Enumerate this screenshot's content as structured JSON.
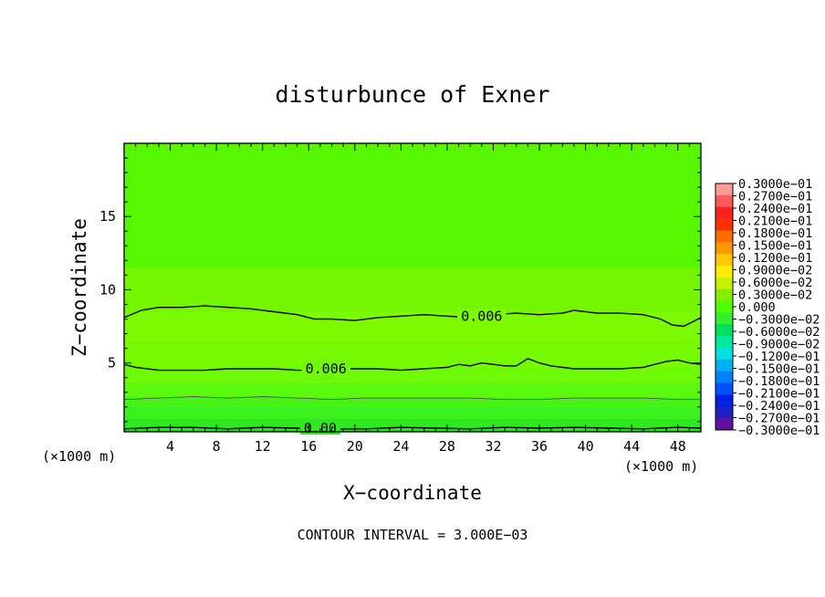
{
  "chart_data": {
    "type": "heatmap",
    "title": "disturbunce of Exner",
    "xlabel": "X−coordinate",
    "ylabel": "Z−coordinate",
    "x_unit_label": "(×1000 m)",
    "y_unit_label": "(×1000 m)",
    "xlim": [
      0,
      50
    ],
    "ylim": [
      0.3,
      20
    ],
    "x_ticks": [
      "4",
      "8",
      "12",
      "16",
      "20",
      "24",
      "28",
      "32",
      "36",
      "40",
      "44",
      "48"
    ],
    "x_tick_values": [
      4,
      8,
      12,
      16,
      20,
      24,
      28,
      32,
      36,
      40,
      44,
      48
    ],
    "y_ticks": [
      "5",
      "10",
      "15"
    ],
    "y_tick_values": [
      5,
      10,
      15
    ],
    "footer": "CONTOUR INTERVAL = 3.000E−03",
    "colorbar": {
      "levels": [
        0.03,
        0.027,
        0.024,
        0.021,
        0.018,
        0.015,
        0.012,
        0.009,
        0.006,
        0.003,
        0,
        -0.003,
        -0.006,
        -0.009,
        -0.012,
        -0.015,
        -0.018,
        -0.021,
        -0.024,
        -0.027,
        -0.03
      ],
      "labels": [
        "0.3000e−01",
        "0.2700e−01",
        "0.2400e−01",
        "0.2100e−01",
        "0.1800e−01",
        "0.1500e−01",
        "0.1200e−01",
        "0.9000e−02",
        "0.6000e−02",
        "0.3000e−02",
        "0.000",
        "−0.3000e−02",
        "−0.6000e−02",
        "−0.9000e−02",
        "−0.1200e−01",
        "−0.1500e−01",
        "−0.1800e−01",
        "−0.2100e−01",
        "−0.2400e−01",
        "−0.2700e−01",
        "−0.3000e−01"
      ],
      "colors": [
        "#ff9a9a",
        "#ff5a5a",
        "#ff2020",
        "#ff3000",
        "#ff6a00",
        "#ff9800",
        "#ffc800",
        "#ffee00",
        "#c8f000",
        "#80f000",
        "#50ff00",
        "#30f030",
        "#00e060",
        "#00e8a0",
        "#00e0e0",
        "#00b0f0",
        "#0080ff",
        "#0050ff",
        "#0020e8",
        "#2020c0",
        "#6010a0"
      ]
    },
    "field_bands": [
      {
        "z_min": 0.3,
        "z_max": 0.5,
        "color": "#1ee81e"
      },
      {
        "z_min": 0.5,
        "z_max": 1.2,
        "color": "#2ee820"
      },
      {
        "z_min": 1.2,
        "z_max": 2.0,
        "color": "#3cf020"
      },
      {
        "z_min": 2.0,
        "z_max": 2.7,
        "color": "#48f418"
      },
      {
        "z_min": 2.7,
        "z_max": 3.7,
        "color": "#5cf80e"
      },
      {
        "z_min": 3.7,
        "z_max": 4.8,
        "color": "#6efa06"
      },
      {
        "z_min": 4.8,
        "z_max": 6.5,
        "color": "#76fa00"
      },
      {
        "z_min": 6.5,
        "z_max": 8.5,
        "color": "#7cfa00"
      },
      {
        "z_min": 8.5,
        "z_max": 11.5,
        "color": "#74f600"
      },
      {
        "z_min": 11.5,
        "z_max": 20,
        "color": "#56f700"
      }
    ],
    "contours": [
      {
        "level": 0.006,
        "label": "0.006",
        "label_x": 31,
        "label_y": 8.2,
        "points": [
          [
            0,
            8.1
          ],
          [
            1.5,
            8.6
          ],
          [
            3,
            8.8
          ],
          [
            5,
            8.8
          ],
          [
            7,
            8.9
          ],
          [
            9,
            8.8
          ],
          [
            11,
            8.7
          ],
          [
            13,
            8.5
          ],
          [
            15,
            8.3
          ],
          [
            16.5,
            8.0
          ],
          [
            18,
            8.0
          ],
          [
            20,
            7.9
          ],
          [
            22,
            8.1
          ],
          [
            24,
            8.2
          ],
          [
            26,
            8.3
          ],
          [
            28,
            8.2
          ],
          [
            30,
            8.1
          ],
          [
            32,
            8.3
          ],
          [
            34,
            8.4
          ],
          [
            36,
            8.3
          ],
          [
            38,
            8.4
          ],
          [
            39,
            8.6
          ],
          [
            41,
            8.4
          ],
          [
            43,
            8.4
          ],
          [
            45,
            8.3
          ],
          [
            46.5,
            8.0
          ],
          [
            47.5,
            7.6
          ],
          [
            48.5,
            7.5
          ],
          [
            49.5,
            7.9
          ],
          [
            50,
            8.1
          ]
        ]
      },
      {
        "level": 0.006,
        "label": "0.006",
        "label_x": 17.5,
        "label_y": 4.6,
        "points": [
          [
            0,
            4.9
          ],
          [
            1,
            4.7
          ],
          [
            3,
            4.5
          ],
          [
            5,
            4.5
          ],
          [
            7,
            4.5
          ],
          [
            9,
            4.6
          ],
          [
            11,
            4.6
          ],
          [
            13,
            4.6
          ],
          [
            15,
            4.5
          ],
          [
            17,
            4.5
          ],
          [
            20,
            4.6
          ],
          [
            22,
            4.6
          ],
          [
            24,
            4.5
          ],
          [
            26,
            4.6
          ],
          [
            28,
            4.7
          ],
          [
            29,
            4.9
          ],
          [
            30,
            4.8
          ],
          [
            31,
            5.0
          ],
          [
            33,
            4.8
          ],
          [
            34,
            4.8
          ],
          [
            35,
            5.3
          ],
          [
            36,
            5.0
          ],
          [
            37,
            4.8
          ],
          [
            39,
            4.6
          ],
          [
            41,
            4.6
          ],
          [
            43,
            4.6
          ],
          [
            45,
            4.7
          ],
          [
            46,
            4.9
          ],
          [
            47,
            5.1
          ],
          [
            48,
            5.2
          ],
          [
            49,
            5.0
          ],
          [
            50,
            4.9
          ]
        ]
      },
      {
        "level": 0.003,
        "label": "",
        "points": [
          [
            0,
            2.5
          ],
          [
            3,
            2.6
          ],
          [
            6,
            2.7
          ],
          [
            9,
            2.6
          ],
          [
            12,
            2.7
          ],
          [
            15,
            2.6
          ],
          [
            18,
            2.5
          ],
          [
            21,
            2.6
          ],
          [
            24,
            2.6
          ],
          [
            27,
            2.6
          ],
          [
            30,
            2.6
          ],
          [
            33,
            2.5
          ],
          [
            36,
            2.5
          ],
          [
            39,
            2.6
          ],
          [
            42,
            2.6
          ],
          [
            45,
            2.6
          ],
          [
            48,
            2.5
          ],
          [
            50,
            2.5
          ]
        ]
      },
      {
        "level": 0.0,
        "label": "0.00",
        "label_x": 17,
        "label_y": 0.55,
        "points": [
          [
            0,
            0.5
          ],
          [
            3,
            0.6
          ],
          [
            6,
            0.6
          ],
          [
            9,
            0.5
          ],
          [
            12,
            0.6
          ],
          [
            15,
            0.55
          ],
          [
            18,
            0.5
          ],
          [
            21,
            0.5
          ],
          [
            24,
            0.6
          ],
          [
            27,
            0.55
          ],
          [
            30,
            0.5
          ],
          [
            33,
            0.6
          ],
          [
            36,
            0.55
          ],
          [
            39,
            0.6
          ],
          [
            42,
            0.55
          ],
          [
            45,
            0.5
          ],
          [
            48,
            0.6
          ],
          [
            50,
            0.55
          ]
        ]
      }
    ]
  }
}
